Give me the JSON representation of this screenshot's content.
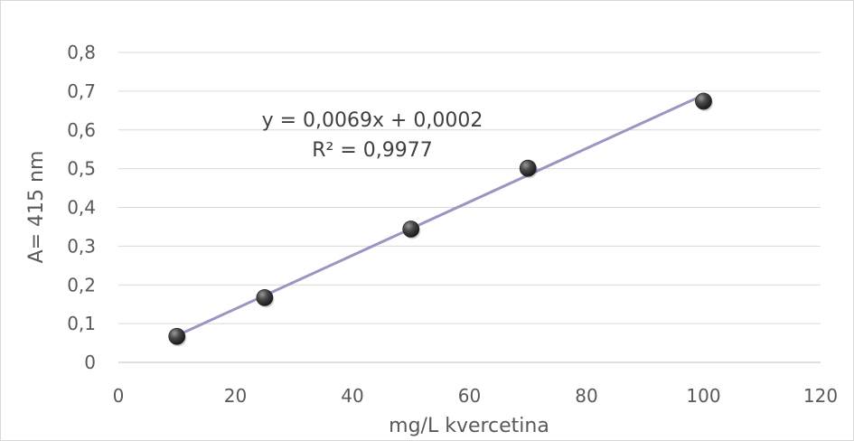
{
  "chart_data": {
    "type": "scatter",
    "title": "",
    "xlabel": "mg/L kvercetina",
    "ylabel": "A= 415 nm",
    "xlim": [
      0,
      120
    ],
    "ylim": [
      0,
      0.8
    ],
    "x_ticks": [
      0,
      20,
      40,
      60,
      80,
      100,
      120
    ],
    "x_tick_labels": [
      "0",
      "20",
      "40",
      "60",
      "80",
      "100",
      "120"
    ],
    "y_ticks": [
      0,
      0.1,
      0.2,
      0.3,
      0.4,
      0.5,
      0.6,
      0.7,
      0.8
    ],
    "y_tick_labels": [
      "0",
      "0,1",
      "0,2",
      "0,3",
      "0,4",
      "0,5",
      "0,6",
      "0,7",
      "0,8"
    ],
    "grid": "horizontal",
    "legend": "none",
    "series": [
      {
        "x": [
          10,
          25,
          50,
          70,
          100
        ],
        "y": [
          0.067,
          0.167,
          0.344,
          0.501,
          0.674
        ],
        "color": "#404040"
      }
    ],
    "trendline": {
      "type": "linear",
      "slope": 0.0069,
      "intercept": 0.0002,
      "x_range": [
        10,
        100
      ],
      "color": "#9e93c2"
    },
    "annotations": {
      "equation": "y = 0,0069x + 0,0002",
      "r_squared": "R² = 0,9977"
    },
    "colors": {
      "grid": "#d9d9d9",
      "axis": "#bfbfbf",
      "text": "#595959",
      "frame": "#d9d9d9"
    }
  }
}
